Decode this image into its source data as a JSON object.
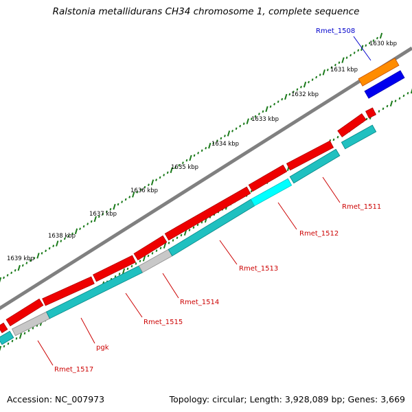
{
  "title": "Ralstonia metallidurans CH34 chromosome 1, complete sequence",
  "footer": {
    "accession": "Accession: NC_007973",
    "summary": "Topology: circular; Length: 3,928,089 bp; Genes: 3,669"
  },
  "colors": {
    "backbone": "#808080",
    "tick": "#1a7a1a",
    "forward_gene": "#ee0000",
    "reverse_gene": "#20c0c0",
    "reverse_gene_highlight": "#00ffff",
    "pseudo_gene": "#c8c8c8",
    "orange_feature": "#ff8c00",
    "blue_feature": "#0000ee",
    "label_red": "#cc0000",
    "label_blue": "#0000cc"
  },
  "ruler": {
    "labels": [
      "1630 kbp",
      "1631 kbp",
      "1632 kbp",
      "1633 kbp",
      "1634 kbp",
      "1635 kbp",
      "1636 kbp",
      "1637 kbp",
      "1638 kbp",
      "1639 kbp"
    ]
  },
  "gene_labels": [
    "Rmet_1508",
    "Rmet_1511",
    "Rmet_1512",
    "Rmet_1513",
    "Rmet_1514",
    "Rmet_1515",
    "pgk",
    "Rmet_1517"
  ]
}
